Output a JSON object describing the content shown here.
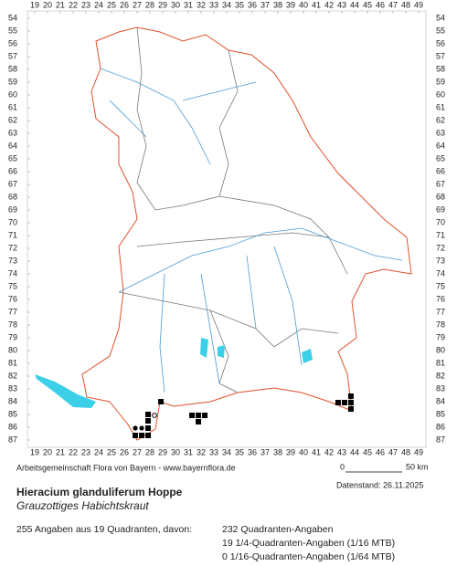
{
  "chart_data": {
    "type": "scatter",
    "title": "Hieracium glanduliferum Hoppe",
    "subtitle": "Grauzottiges Habichtskraut",
    "credit": "Arbeitsgemeinschaft Flora von Bayern - www.bayernflora.de",
    "date": "Datenstand: 26.11.2025",
    "scale_labels": [
      "0",
      "50 km"
    ],
    "summary": "255 Angaben aus 19 Quadranten, davon:",
    "counts": [
      "232 Quadranten-Angaben",
      "19 1/4-Quadranten-Angaben (1/16 MTB)",
      "0 1/16-Quadranten-Angaben (1/64 MTB)"
    ],
    "xlim": [
      19,
      49
    ],
    "ylim": [
      54,
      87
    ],
    "y_inverted": true,
    "xticks": [
      19,
      20,
      21,
      22,
      23,
      24,
      25,
      26,
      27,
      28,
      29,
      30,
      31,
      32,
      33,
      34,
      35,
      36,
      37,
      38,
      39,
      40,
      41,
      42,
      43,
      44,
      45,
      46,
      47,
      48,
      49
    ],
    "yticks": [
      54,
      55,
      56,
      57,
      58,
      59,
      60,
      61,
      62,
      63,
      64,
      65,
      66,
      67,
      68,
      69,
      70,
      71,
      72,
      73,
      74,
      75,
      76,
      77,
      78,
      79,
      80,
      81,
      82,
      83,
      84,
      85,
      86,
      87
    ],
    "series": [
      {
        "marker": "square",
        "color": "#000000",
        "x": [
          26.86,
          27.36,
          27.86,
          27.86,
          27.86,
          27.86,
          28.86,
          31.29,
          31.79,
          32.29,
          31.79,
          42.71,
          43.21,
          43.71,
          43.71,
          43.71
        ],
        "values": [
          86.64,
          86.64,
          86.64,
          86.07,
          85.5,
          85.0,
          84.0,
          85.07,
          85.07,
          85.07,
          85.57,
          84.07,
          84.07,
          84.07,
          83.57,
          84.57
        ]
      },
      {
        "marker": "circle",
        "color": "#000000",
        "x": [
          26.86,
          27.36
        ],
        "values": [
          86.07,
          86.07
        ]
      },
      {
        "marker": "open-circle",
        "color": "#000000",
        "x": [
          28.36
        ],
        "values": [
          85.07
        ]
      }
    ]
  }
}
